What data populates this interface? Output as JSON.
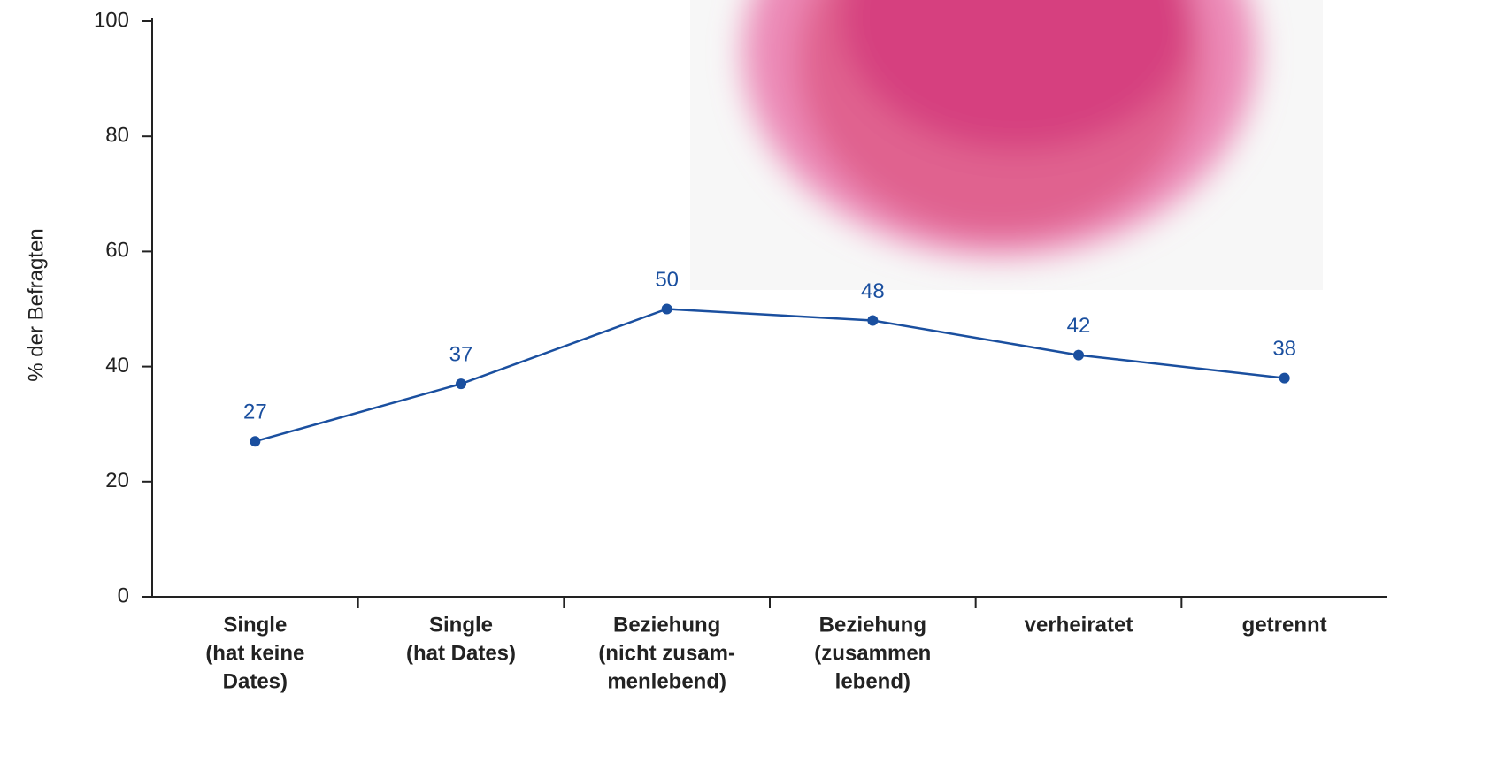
{
  "chart_data": {
    "type": "line",
    "y_label": "% der Befragten",
    "categories": [
      [
        "Single",
        "(hat keine",
        "Dates)"
      ],
      [
        "Single",
        "(hat Dates)"
      ],
      [
        "Beziehung",
        "(nicht zusam-",
        "menlebend)"
      ],
      [
        "Beziehung",
        "(zusammen",
        "lebend)"
      ],
      [
        "verheiratet"
      ],
      [
        "getrennt"
      ]
    ],
    "series": [
      {
        "color": "#1a4f9f",
        "values": [
          27,
          37,
          50,
          48,
          42,
          38
        ]
      }
    ],
    "ylim": [
      0,
      100
    ],
    "yticks": [
      0,
      20,
      40,
      60,
      80,
      100
    ]
  }
}
